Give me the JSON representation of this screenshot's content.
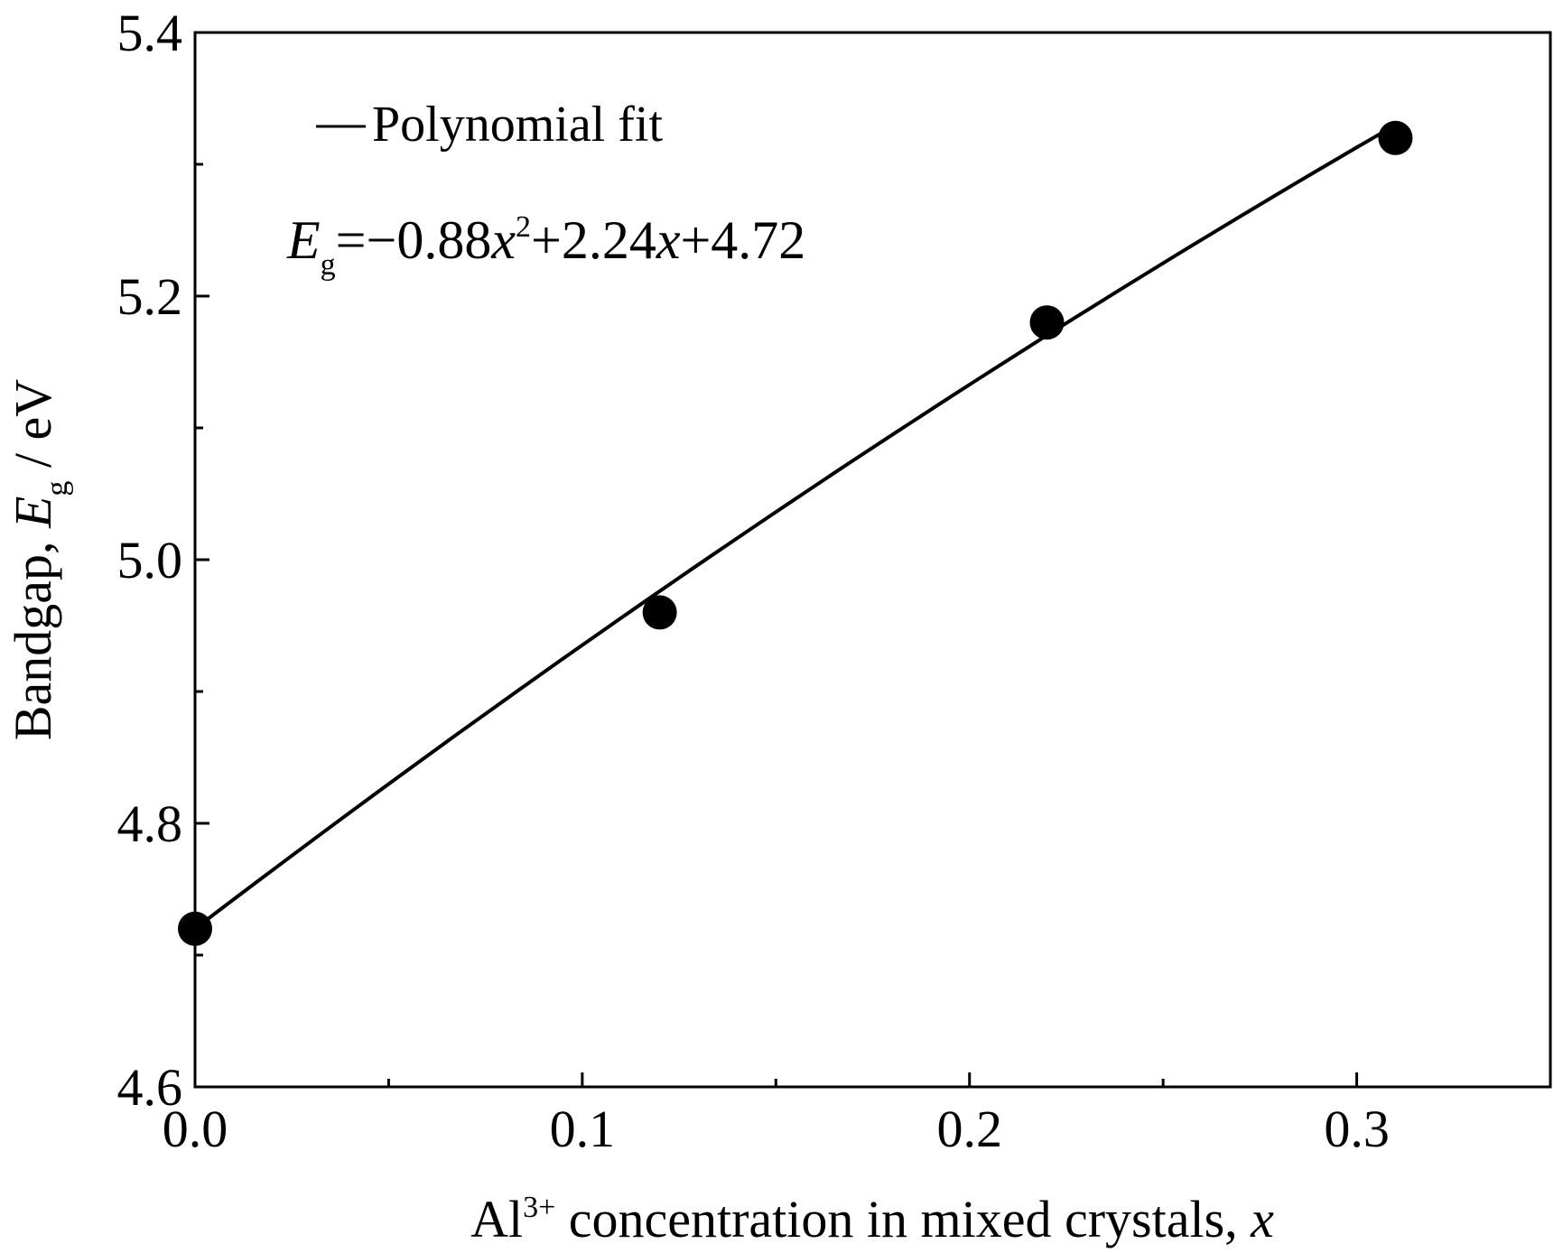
{
  "chart_data": {
    "type": "scatter",
    "xlabel": {
      "prefix": "Al",
      "sup": "3+",
      "suffix": " concentration in mixed crystals, ",
      "var": "x"
    },
    "ylabel": {
      "prefix": "Bandgap, ",
      "var": "E",
      "sub": "g",
      "suffix": " / eV"
    },
    "xlim": [
      0,
      0.35
    ],
    "ylim": [
      4.6,
      5.4
    ],
    "xticks": [
      0.0,
      0.1,
      0.2,
      0.3
    ],
    "xtick_labels": [
      "0.0",
      "0.1",
      "0.2",
      "0.3"
    ],
    "xminor": [
      0.05,
      0.15,
      0.25
    ],
    "yticks": [
      4.6,
      4.8,
      5.0,
      5.2,
      5.4
    ],
    "ytick_labels": [
      "4.6",
      "4.8",
      "5.0",
      "5.2",
      "5.4"
    ],
    "yminor": [
      4.7,
      4.9,
      5.1,
      5.3
    ],
    "grid": false,
    "series": [
      {
        "kind": "scatter",
        "marker": "filled-circle",
        "color": "#000000",
        "x": [
          0.0,
          0.12,
          0.22,
          0.31
        ],
        "y": [
          4.72,
          4.96,
          5.18,
          5.32
        ]
      },
      {
        "kind": "line",
        "name": "Polynomial fit",
        "color": "#000000",
        "fit": {
          "a": -0.88,
          "b": 2.24,
          "c": 4.72,
          "xmin": 0.0,
          "xmax": 0.31
        }
      }
    ],
    "legend": {
      "placement": "top-left",
      "label": "Polynomial fit"
    },
    "annotation": {
      "lhs": "E",
      "lhs_sub": "g",
      "part1": "=−0.88",
      "var1": "x",
      "sup1": "2",
      "part2": "+2.24",
      "var2": "x",
      "part3": "+4.72"
    }
  }
}
